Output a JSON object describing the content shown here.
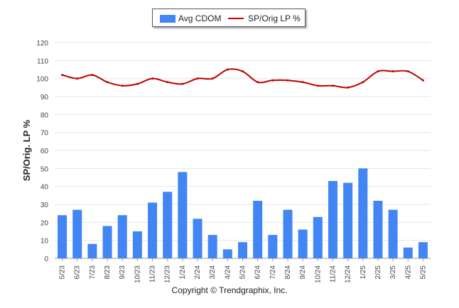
{
  "chart_data": {
    "type": "bar+line",
    "ylabel": "SP/Orig. LP %",
    "ylim": [
      0,
      120
    ],
    "yticks": [
      0,
      10,
      20,
      30,
      40,
      50,
      60,
      70,
      80,
      90,
      100,
      110,
      120
    ],
    "grid": true,
    "legend_position": "top-center",
    "categories": [
      "5/23",
      "6/23",
      "7/23",
      "8/23",
      "9/23",
      "10/23",
      "11/23",
      "12/23",
      "1/24",
      "2/24",
      "3/24",
      "4/24",
      "5/24",
      "6/24",
      "7/24",
      "8/24",
      "9/24",
      "10/24",
      "11/24",
      "12/24",
      "1/25",
      "2/25",
      "3/25",
      "4/25",
      "5/25"
    ],
    "series": [
      {
        "name": "Avg CDOM",
        "type": "bar",
        "color": "#4285f4",
        "values": [
          24,
          27,
          8,
          18,
          24,
          15,
          31,
          37,
          48,
          22,
          13,
          5,
          9,
          32,
          13,
          27,
          16,
          23,
          43,
          42,
          50,
          32,
          27,
          6,
          9
        ]
      },
      {
        "name": "SP/Orig LP %",
        "type": "line",
        "color": "#c00000",
        "values": [
          102,
          100,
          102,
          98,
          96,
          97,
          100,
          98,
          97,
          100,
          100,
          105,
          104,
          98,
          99,
          99,
          98,
          96,
          96,
          95,
          98,
          104,
          104,
          104,
          99
        ]
      }
    ]
  },
  "footer": {
    "copyright": "Copyright © Trendgraphix, Inc."
  }
}
